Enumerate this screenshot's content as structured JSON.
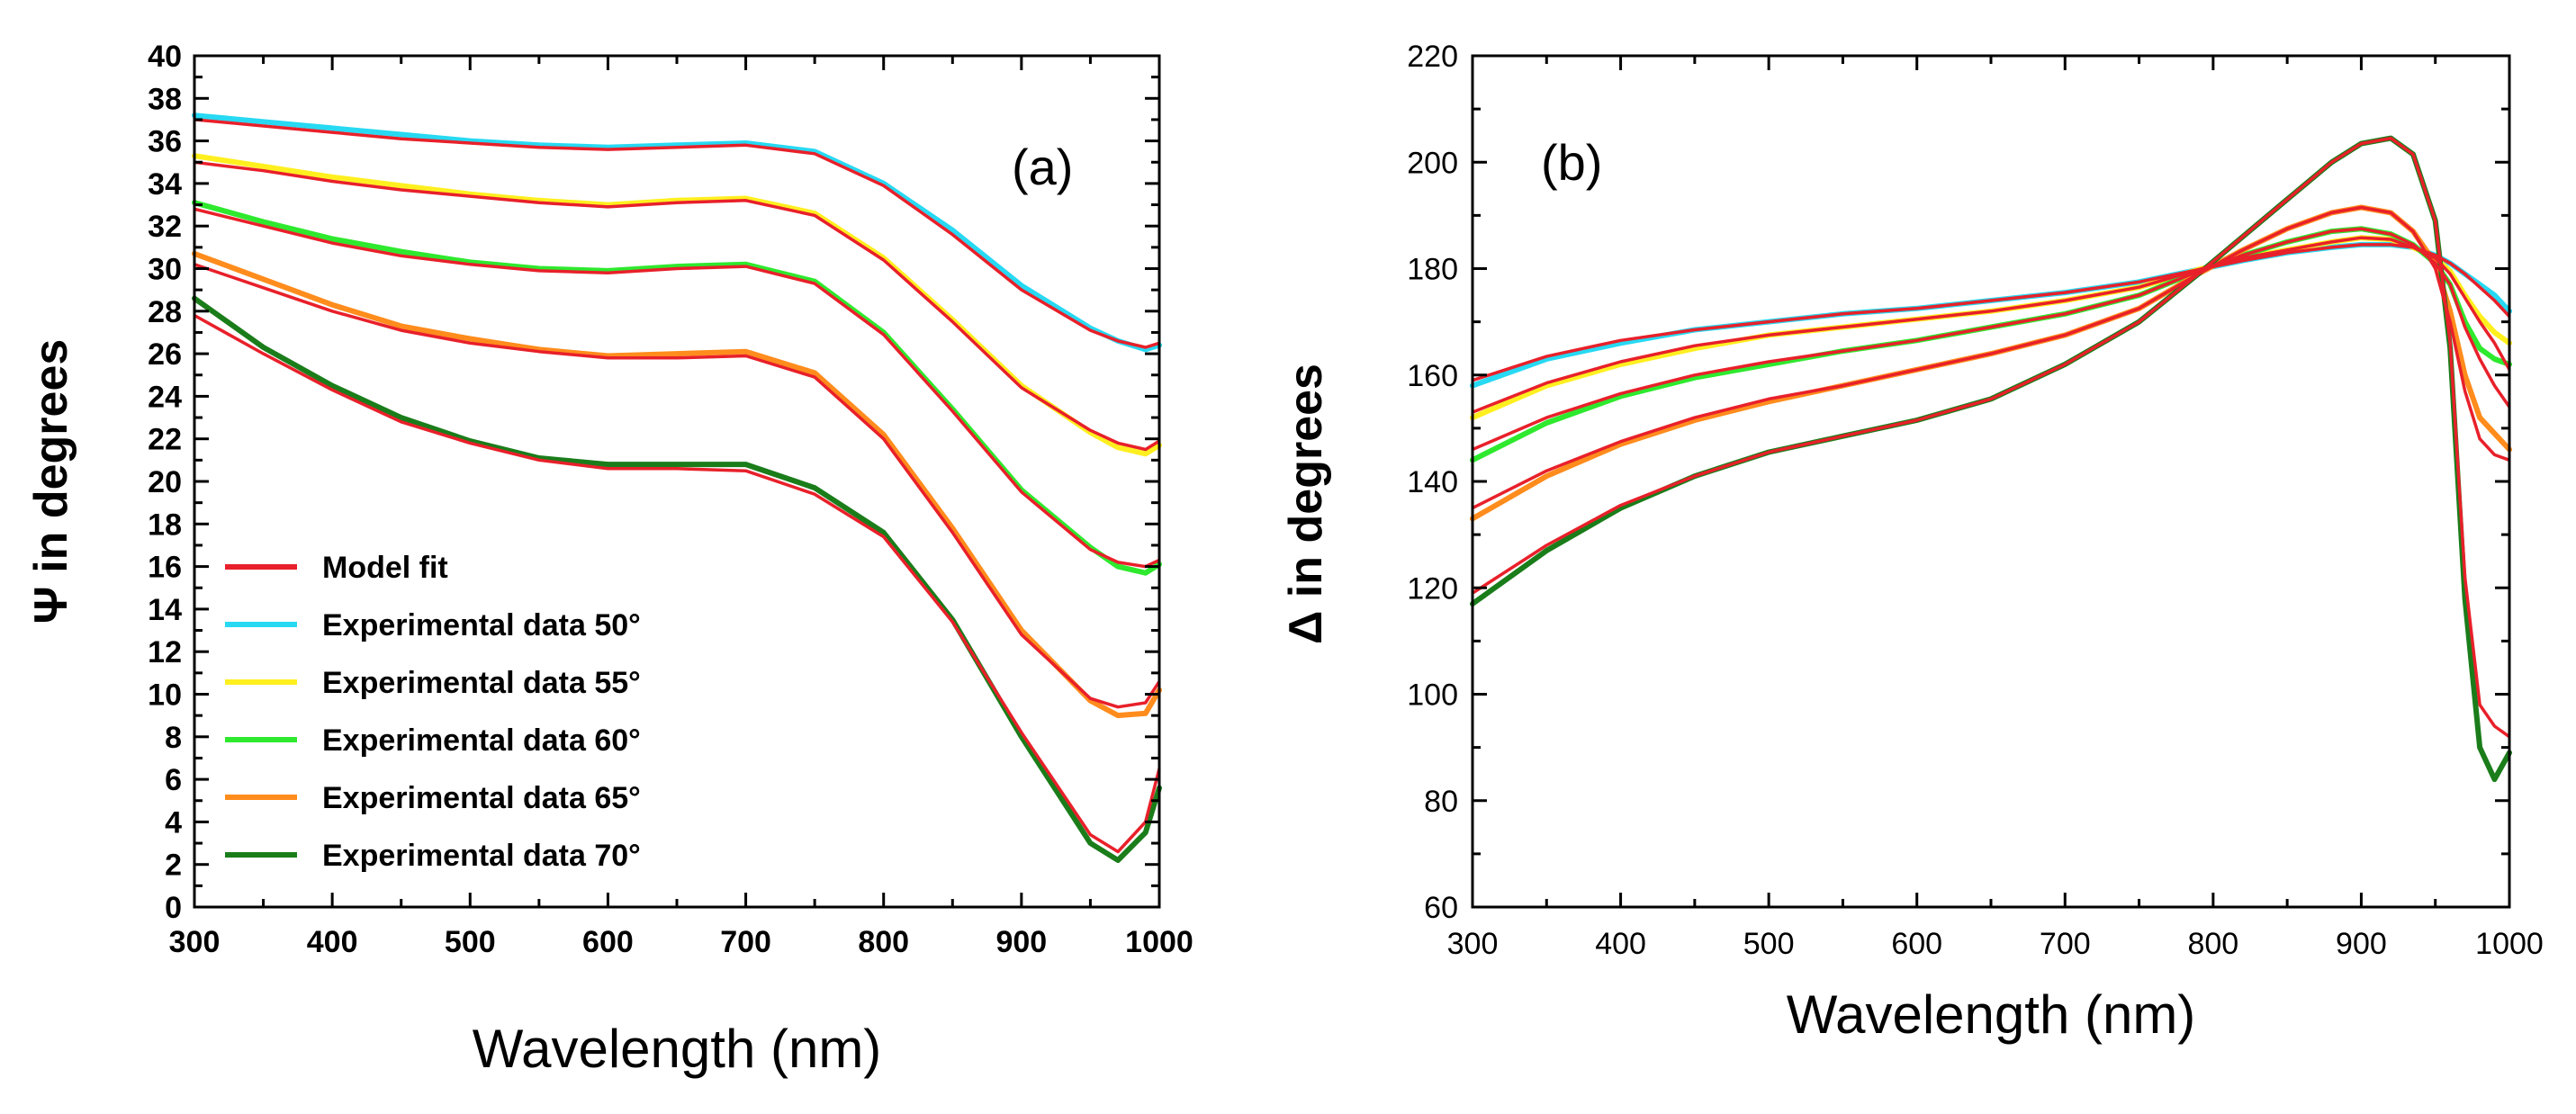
{
  "colors": {
    "fit": "#e8202a",
    "s50": "#27d9f2",
    "s55": "#ffef1f",
    "s60": "#2ee92e",
    "s65": "#ff8c1c",
    "s70": "#1a7d1a"
  },
  "chart_data": [
    {
      "type": "line",
      "panel_label": "(a)",
      "xlabel": "Wavelength (nm)",
      "ylabel": "Ψ in degrees",
      "xlim": [
        300,
        1000
      ],
      "ylim": [
        0,
        40
      ],
      "xticks": [
        300,
        400,
        500,
        600,
        700,
        800,
        900,
        1000
      ],
      "yticks": [
        0,
        2,
        4,
        6,
        8,
        10,
        12,
        14,
        16,
        18,
        20,
        22,
        24,
        26,
        28,
        30,
        32,
        34,
        36,
        38,
        40
      ],
      "legend": [
        {
          "label": "Model fit",
          "color_key": "fit"
        },
        {
          "label": "Experimental data 50°",
          "color_key": "s50"
        },
        {
          "label": "Experimental data  55°",
          "color_key": "s55"
        },
        {
          "label": "Experimental data  60°",
          "color_key": "s60"
        },
        {
          "label": "Experimental data  65°",
          "color_key": "s65"
        },
        {
          "label": "Experimental data  70°",
          "color_key": "s70"
        }
      ],
      "x": [
        300,
        350,
        400,
        450,
        500,
        550,
        600,
        650,
        700,
        750,
        800,
        850,
        900,
        950,
        970,
        990,
        1000
      ],
      "series": [
        {
          "name": "Experimental data 50°",
          "color_key": "s50",
          "values": [
            37.2,
            36.9,
            36.6,
            36.3,
            36.0,
            35.8,
            35.7,
            35.8,
            35.9,
            35.5,
            34.0,
            31.8,
            29.2,
            27.2,
            26.6,
            26.2,
            26.4
          ]
        },
        {
          "name": "Experimental data 55°",
          "color_key": "s55",
          "values": [
            35.3,
            34.8,
            34.3,
            33.9,
            33.5,
            33.2,
            33.0,
            33.2,
            33.3,
            32.6,
            30.5,
            27.6,
            24.5,
            22.3,
            21.6,
            21.3,
            21.7
          ]
        },
        {
          "name": "Experimental data 60°",
          "color_key": "s60",
          "values": [
            33.1,
            32.2,
            31.4,
            30.8,
            30.3,
            30.0,
            29.9,
            30.1,
            30.2,
            29.4,
            27.0,
            23.4,
            19.6,
            16.9,
            16.0,
            15.7,
            16.1
          ]
        },
        {
          "name": "Experimental data 65°",
          "color_key": "s65",
          "values": [
            30.7,
            29.5,
            28.3,
            27.3,
            26.7,
            26.2,
            25.9,
            26.0,
            26.1,
            25.1,
            22.2,
            17.8,
            13.0,
            9.7,
            9.0,
            9.1,
            10.2
          ]
        },
        {
          "name": "Experimental data 70°",
          "color_key": "s70",
          "values": [
            28.6,
            26.3,
            24.5,
            23.0,
            21.9,
            21.1,
            20.8,
            20.8,
            20.8,
            19.7,
            17.6,
            13.5,
            8.0,
            3.0,
            2.2,
            3.5,
            5.6
          ]
        }
      ],
      "fit_series": [
        {
          "name": "Model fit 50°",
          "color_key": "fit",
          "values": [
            37.0,
            36.7,
            36.4,
            36.1,
            35.9,
            35.7,
            35.6,
            35.7,
            35.8,
            35.4,
            33.9,
            31.6,
            29.0,
            27.1,
            26.6,
            26.3,
            26.5
          ]
        },
        {
          "name": "Model fit 55°",
          "color_key": "fit",
          "values": [
            35.0,
            34.6,
            34.1,
            33.7,
            33.4,
            33.1,
            32.9,
            33.1,
            33.2,
            32.5,
            30.4,
            27.5,
            24.4,
            22.4,
            21.8,
            21.5,
            21.9
          ]
        },
        {
          "name": "Model fit 60°",
          "color_key": "fit",
          "values": [
            32.8,
            32.0,
            31.2,
            30.6,
            30.2,
            29.9,
            29.8,
            30.0,
            30.1,
            29.3,
            26.9,
            23.3,
            19.5,
            16.8,
            16.2,
            16.0,
            16.3
          ]
        },
        {
          "name": "Model fit 65°",
          "color_key": "fit",
          "values": [
            30.2,
            29.1,
            28.0,
            27.1,
            26.5,
            26.1,
            25.8,
            25.8,
            25.9,
            24.9,
            22.0,
            17.6,
            12.8,
            9.8,
            9.4,
            9.6,
            10.6
          ]
        },
        {
          "name": "Model fit 70°",
          "color_key": "fit",
          "values": [
            27.8,
            26.0,
            24.3,
            22.8,
            21.8,
            21.0,
            20.6,
            20.6,
            20.5,
            19.4,
            17.4,
            13.4,
            8.2,
            3.4,
            2.6,
            4.0,
            6.5
          ]
        }
      ]
    },
    {
      "type": "line",
      "panel_label": "(b)",
      "xlabel": "Wavelength (nm)",
      "ylabel": "Δ in degrees",
      "xlim": [
        300,
        1000
      ],
      "ylim": [
        60,
        220
      ],
      "xticks": [
        300,
        400,
        500,
        600,
        700,
        800,
        900,
        1000
      ],
      "yticks": [
        60,
        80,
        100,
        120,
        140,
        160,
        180,
        200,
        220
      ],
      "x": [
        300,
        350,
        400,
        450,
        500,
        550,
        600,
        650,
        700,
        750,
        790,
        820,
        850,
        880,
        900,
        920,
        935,
        950,
        960,
        970,
        980,
        990,
        1000
      ],
      "series": [
        {
          "name": "Experimental data 50°",
          "color_key": "s50",
          "values": [
            158,
            163,
            166,
            168.5,
            170,
            171.5,
            172.5,
            174,
            175.5,
            177.5,
            179.8,
            181.5,
            183,
            184,
            184.5,
            184.5,
            184,
            182.5,
            181,
            179,
            177,
            175,
            172
          ]
        },
        {
          "name": "Experimental data 55°",
          "color_key": "s55",
          "values": [
            152,
            158,
            162,
            165,
            167.5,
            169,
            170.5,
            172,
            174,
            176.5,
            179.8,
            182,
            183.5,
            185,
            185.8,
            185.5,
            184,
            182,
            179.5,
            175,
            171,
            168,
            166
          ]
        },
        {
          "name": "Experimental data 60°",
          "color_key": "s60",
          "values": [
            144,
            151,
            156,
            159.5,
            162,
            164.5,
            166.5,
            169,
            171.5,
            175,
            179.5,
            182.5,
            185,
            187,
            187.5,
            186.5,
            184.5,
            181,
            177,
            170,
            165,
            163,
            162
          ]
        },
        {
          "name": "Experimental data 65°",
          "color_key": "s65",
          "values": [
            133,
            141,
            147,
            151.5,
            155,
            158,
            161,
            164,
            167.5,
            172.5,
            179,
            183.5,
            187.5,
            190.5,
            191.5,
            190.5,
            187,
            181,
            172,
            160,
            152,
            149,
            146
          ]
        },
        {
          "name": "Experimental data 70°",
          "color_key": "s70",
          "values": [
            117,
            127,
            135,
            141,
            145.5,
            148.5,
            151.5,
            155.5,
            162,
            170,
            179,
            186,
            193,
            200,
            203.5,
            204.5,
            201.5,
            189,
            165,
            118,
            90,
            84,
            89
          ]
        }
      ],
      "fit_series": [
        {
          "name": "Model fit 50°",
          "color_key": "fit",
          "values": [
            159,
            163.5,
            166.5,
            168.5,
            170,
            171.5,
            172.5,
            174,
            175.5,
            177.5,
            179.8,
            181.5,
            183,
            184,
            184.5,
            184.5,
            184,
            182.5,
            181,
            179,
            176.5,
            174,
            171
          ]
        },
        {
          "name": "Model fit 55°",
          "color_key": "fit",
          "values": [
            153,
            158.5,
            162.5,
            165.5,
            167.5,
            169,
            170.5,
            172,
            174,
            176.5,
            179.8,
            182,
            183.5,
            185,
            185.8,
            185.5,
            184,
            182,
            179,
            174.5,
            170,
            166,
            161
          ]
        },
        {
          "name": "Model fit 60°",
          "color_key": "fit",
          "values": [
            146,
            152,
            156.5,
            160,
            162.5,
            164.5,
            166.5,
            169,
            171.5,
            175,
            179.5,
            182.5,
            185,
            187,
            187.5,
            186.5,
            184.5,
            181,
            177,
            169,
            163,
            158,
            154
          ]
        },
        {
          "name": "Model fit 65°",
          "color_key": "fit",
          "values": [
            135,
            142,
            147.5,
            152,
            155.5,
            158,
            161,
            164,
            167.5,
            172.5,
            179,
            183.5,
            187.5,
            190.5,
            191.5,
            190.5,
            187,
            180,
            170,
            157,
            148,
            145,
            144
          ]
        },
        {
          "name": "Model fit 70°",
          "color_key": "fit",
          "values": [
            119,
            128,
            135.5,
            141,
            145.5,
            148.5,
            151.5,
            155.5,
            162,
            170,
            179,
            186,
            193,
            200,
            203.5,
            204.5,
            201.5,
            189,
            166,
            122,
            98,
            94,
            92
          ]
        }
      ]
    }
  ]
}
